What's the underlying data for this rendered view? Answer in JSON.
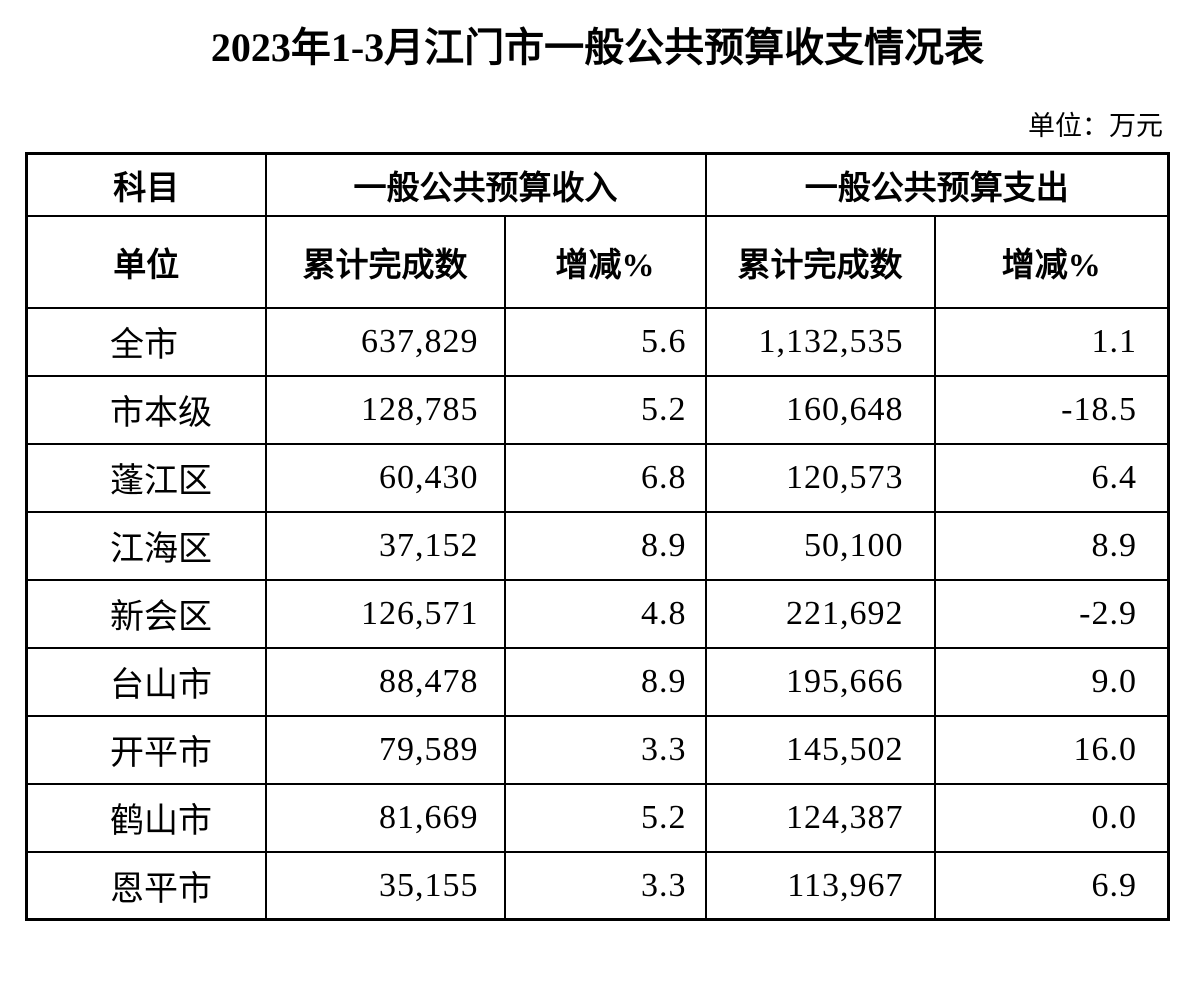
{
  "page": {
    "title": "2023年1-3月江门市一般公共预算收支情况表",
    "unit_note": "单位：万元"
  },
  "colors": {
    "background": "#ffffff",
    "text": "#000000",
    "border": "#000000"
  },
  "table": {
    "header": {
      "subject": "科目",
      "unit": "单位",
      "revenue_group": "一般公共预算收入",
      "expenditure_group": "一般公共预算支出",
      "cumulative": "累计完成数",
      "change_pct": "增减%"
    },
    "rows": [
      {
        "name": "全市",
        "revenue_cumulative": "637,829",
        "revenue_change_pct": "5.6",
        "expenditure_cumulative": "1,132,535",
        "expenditure_change_pct": "1.1"
      },
      {
        "name": "市本级",
        "revenue_cumulative": "128,785",
        "revenue_change_pct": "5.2",
        "expenditure_cumulative": "160,648",
        "expenditure_change_pct": "-18.5"
      },
      {
        "name": "蓬江区",
        "revenue_cumulative": "60,430",
        "revenue_change_pct": "6.8",
        "expenditure_cumulative": "120,573",
        "expenditure_change_pct": "6.4"
      },
      {
        "name": "江海区",
        "revenue_cumulative": "37,152",
        "revenue_change_pct": "8.9",
        "expenditure_cumulative": "50,100",
        "expenditure_change_pct": "8.9"
      },
      {
        "name": "新会区",
        "revenue_cumulative": "126,571",
        "revenue_change_pct": "4.8",
        "expenditure_cumulative": "221,692",
        "expenditure_change_pct": "-2.9"
      },
      {
        "name": "台山市",
        "revenue_cumulative": "88,478",
        "revenue_change_pct": "8.9",
        "expenditure_cumulative": "195,666",
        "expenditure_change_pct": "9.0"
      },
      {
        "name": "开平市",
        "revenue_cumulative": "79,589",
        "revenue_change_pct": "3.3",
        "expenditure_cumulative": "145,502",
        "expenditure_change_pct": "16.0"
      },
      {
        "name": "鹤山市",
        "revenue_cumulative": "81,669",
        "revenue_change_pct": "5.2",
        "expenditure_cumulative": "124,387",
        "expenditure_change_pct": "0.0"
      },
      {
        "name": "恩平市",
        "revenue_cumulative": "35,155",
        "revenue_change_pct": "3.3",
        "expenditure_cumulative": "113,967",
        "expenditure_change_pct": "6.9"
      }
    ]
  }
}
